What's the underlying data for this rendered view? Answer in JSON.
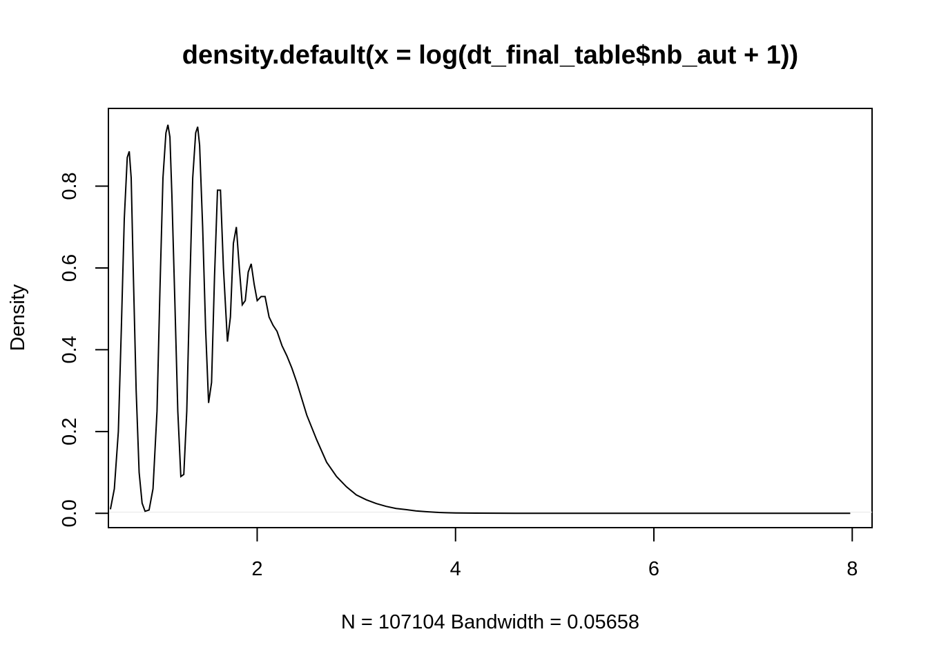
{
  "chart_data": {
    "type": "line",
    "title": "density.default(x = log(dt_final_table$nb_aut + 1))",
    "xlabel": "N = 107104   Bandwidth = 0.05658",
    "ylabel": "Density",
    "xlim": [
      0.5,
      8.2
    ],
    "ylim": [
      -0.035,
      0.99
    ],
    "x_ticks": [
      2,
      4,
      6,
      8
    ],
    "y_ticks": [
      0.0,
      0.2,
      0.4,
      0.6,
      0.8
    ],
    "x_tick_labels": [
      "2",
      "4",
      "6",
      "8"
    ],
    "y_tick_labels": [
      "0.0",
      "0.2",
      "0.4",
      "0.6",
      "0.8"
    ],
    "grid": false,
    "series": [
      {
        "x": [
          0.52,
          0.56,
          0.6,
          0.63,
          0.66,
          0.69,
          0.71,
          0.73,
          0.75,
          0.78,
          0.81,
          0.84,
          0.87,
          0.91,
          0.95,
          0.99,
          1.02,
          1.05,
          1.08,
          1.1,
          1.12,
          1.14,
          1.17,
          1.2,
          1.23,
          1.26,
          1.29,
          1.32,
          1.35,
          1.38,
          1.4,
          1.42,
          1.45,
          1.48,
          1.51,
          1.54,
          1.57,
          1.6,
          1.63,
          1.66,
          1.7,
          1.73,
          1.76,
          1.79,
          1.82,
          1.85,
          1.88,
          1.91,
          1.94,
          1.97,
          2.0,
          2.04,
          2.08,
          2.12,
          2.16,
          2.2,
          2.25,
          2.3,
          2.35,
          2.4,
          2.5,
          2.6,
          2.7,
          2.8,
          2.9,
          3.0,
          3.1,
          3.2,
          3.3,
          3.4,
          3.5,
          3.6,
          3.7,
          3.8,
          3.9,
          4.0,
          4.2,
          4.4,
          4.6,
          4.8,
          5.0,
          5.5,
          6.0,
          6.5,
          7.0,
          7.5,
          7.98
        ],
        "y": [
          0.01,
          0.06,
          0.2,
          0.45,
          0.72,
          0.87,
          0.885,
          0.82,
          0.6,
          0.3,
          0.1,
          0.025,
          0.005,
          0.008,
          0.06,
          0.25,
          0.55,
          0.82,
          0.93,
          0.95,
          0.92,
          0.78,
          0.52,
          0.25,
          0.09,
          0.095,
          0.25,
          0.55,
          0.82,
          0.93,
          0.945,
          0.9,
          0.7,
          0.45,
          0.27,
          0.32,
          0.58,
          0.79,
          0.79,
          0.6,
          0.42,
          0.48,
          0.66,
          0.7,
          0.6,
          0.51,
          0.52,
          0.59,
          0.61,
          0.56,
          0.52,
          0.53,
          0.53,
          0.48,
          0.46,
          0.445,
          0.41,
          0.385,
          0.355,
          0.32,
          0.24,
          0.18,
          0.125,
          0.09,
          0.065,
          0.045,
          0.033,
          0.024,
          0.017,
          0.012,
          0.009,
          0.006,
          0.004,
          0.0025,
          0.0015,
          0.001,
          0.0005,
          0.0003,
          0.0002,
          0.0001,
          0.0,
          0.0,
          0.0,
          0.0,
          0.0,
          0.0,
          0.0
        ]
      }
    ]
  }
}
